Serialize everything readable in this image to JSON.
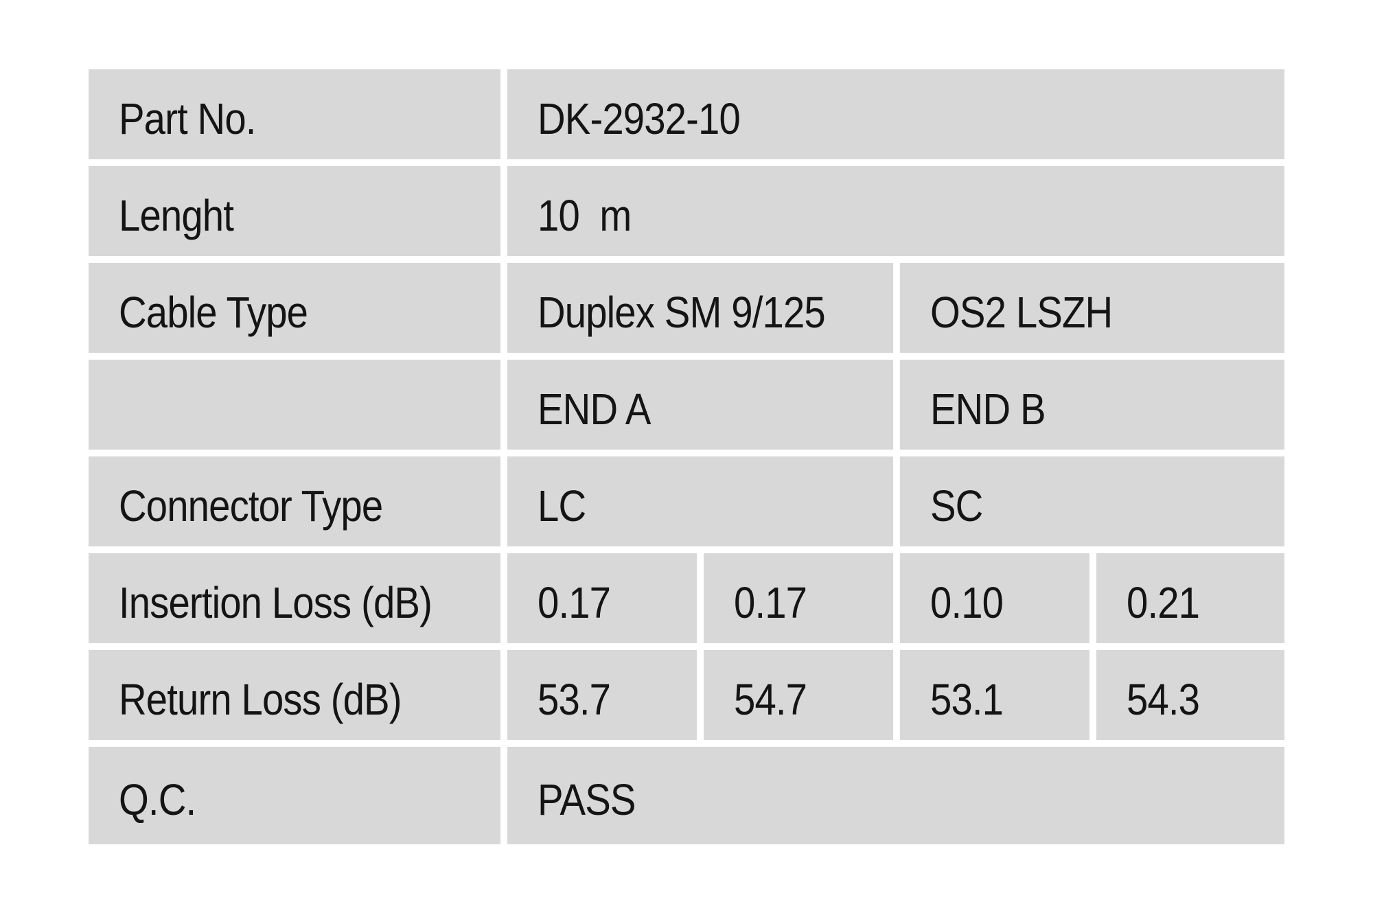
{
  "colors": {
    "page_bg": "#ffffff",
    "cell_bg": "#d8d8d8",
    "text_color": "#141414"
  },
  "table": {
    "rows": {
      "part_no": {
        "label": "Part No.",
        "value": "DK-2932-10"
      },
      "length": {
        "label": "Lenght",
        "value": "10  m"
      },
      "cable_type": {
        "label": "Cable Type",
        "value_a": "Duplex SM 9/125",
        "value_b": "OS2 LSZH"
      },
      "ends": {
        "label": "",
        "end_a": "END A",
        "end_b": "END B"
      },
      "connector_type": {
        "label": "Connector Type",
        "end_a": "LC",
        "end_b": "SC"
      },
      "insertion_loss": {
        "label": "Insertion Loss (dB)",
        "values": [
          "0.17",
          "0.17",
          "0.10",
          "0.21"
        ]
      },
      "return_loss": {
        "label": "Return Loss (dB)",
        "values": [
          "53.7",
          "54.7",
          "53.1",
          "54.3"
        ]
      },
      "qc": {
        "label": "Q.C.",
        "value": "PASS"
      }
    }
  }
}
